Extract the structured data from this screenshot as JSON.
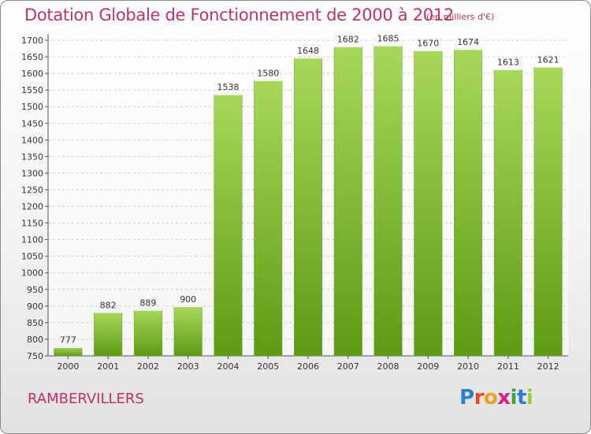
{
  "chart_data": {
    "type": "bar",
    "title": "Dotation Globale de Fonctionnement de 2000 à 2012",
    "unit_note": "(en milliers d'€)",
    "categories": [
      "2000",
      "2001",
      "2002",
      "2003",
      "2004",
      "2005",
      "2006",
      "2007",
      "2008",
      "2009",
      "2010",
      "2011",
      "2012"
    ],
    "values": [
      777,
      882,
      889,
      900,
      1538,
      1580,
      1648,
      1682,
      1685,
      1670,
      1674,
      1613,
      1621
    ],
    "value_labels": [
      "777",
      "882",
      "889",
      "900",
      "1538",
      "1580",
      "1648",
      "1682",
      "1685",
      "1670",
      "1674",
      "1613",
      "1621"
    ],
    "yticks": [
      750,
      800,
      850,
      900,
      950,
      1000,
      1050,
      1100,
      1150,
      1200,
      1250,
      1300,
      1350,
      1400,
      1450,
      1500,
      1550,
      1600,
      1650,
      1700
    ],
    "ylim": [
      750,
      1700
    ],
    "xlabel": "",
    "ylabel": "",
    "grid": true,
    "colors": {
      "bar_top": "#a8d85a",
      "bar_bottom": "#5e9a14",
      "grid": "#d0d0d0",
      "axis": "#555555"
    }
  },
  "footer": {
    "commune": "RAMBERVILLERS",
    "brand_letters": [
      "P",
      "r",
      "o",
      "x",
      "i",
      "t",
      "i"
    ],
    "brand_colors": [
      "#2a7fd0",
      "#e24a2a",
      "#f0a020",
      "#e0207a",
      "#3aa53a",
      "#2a7fd0",
      "#9acd32"
    ]
  }
}
